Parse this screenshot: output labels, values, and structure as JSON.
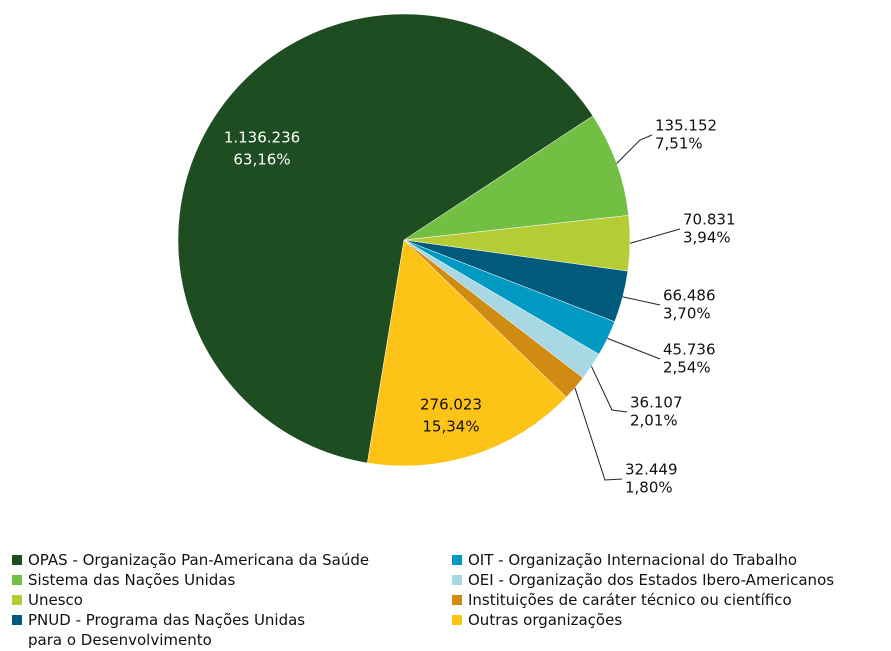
{
  "chart_data": {
    "type": "pie",
    "categories": [
      "OPAS - Organização Pan-Americana da Saúde",
      "Sistema das Nações Unidas",
      "Unesco",
      "PNUD - Programa das Nações Unidas\npara o Desenvolvimento",
      "OIT - Organização Internacional do Trabalho",
      "OEI - Organização dos Estados Ibero-Americanos",
      "Instituições de caráter técnico ou científico",
      "Outras organizações"
    ],
    "values": [
      1136236,
      135152,
      70831,
      66486,
      45736,
      36107,
      32449,
      276023
    ],
    "value_labels": [
      "1.136.236",
      "135.152",
      "70.831",
      "66.486",
      "45.736",
      "36.107",
      "32.449",
      "276.023"
    ],
    "percent_labels": [
      "63,16%",
      "7,51%",
      "3,94%",
      "3,70%",
      "2,54%",
      "2,01%",
      "1,80%",
      "15,34%"
    ],
    "colors": [
      "#1e4d22",
      "#72bf44",
      "#b5cc34",
      "#005a7c",
      "#0099c1",
      "#a8d8e4",
      "#d08c12",
      "#fdc317"
    ],
    "legend": "bottom"
  }
}
